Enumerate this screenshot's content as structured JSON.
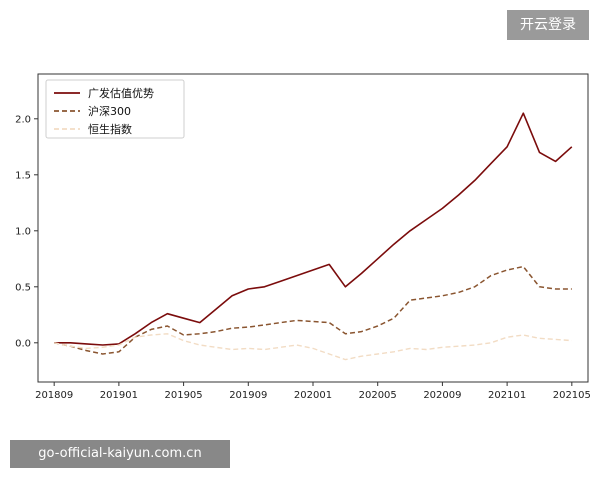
{
  "header": {
    "login_label": "开云登录"
  },
  "footer": {
    "watermark_text": "go-official-kaiyun.com.cn"
  },
  "colors": {
    "button_bg": "#9a9a9a",
    "watermark_bg": "#888888",
    "series_fund": "#7b0c0c",
    "series_csi300": "#8a5530",
    "series_hsi": "#f2dcc4"
  },
  "chart_data": {
    "type": "line",
    "title": "",
    "xlabel": "",
    "ylabel": "",
    "xlim": [
      "2018-08",
      "2021-06"
    ],
    "ylim": [
      -0.35,
      2.4
    ],
    "grid": false,
    "legend_position": "top-left",
    "x_ticks": [
      "201809",
      "201901",
      "201905",
      "201909",
      "202001",
      "202005",
      "202009",
      "202101",
      "202105"
    ],
    "y_ticks": [
      "0.0",
      "0.5",
      "1.0",
      "1.5",
      "2.0"
    ],
    "x": [
      "2018-09",
      "2018-10",
      "2018-11",
      "2018-12",
      "2019-01",
      "2019-02",
      "2019-03",
      "2019-04",
      "2019-05",
      "2019-06",
      "2019-07",
      "2019-08",
      "2019-09",
      "2019-10",
      "2019-11",
      "2019-12",
      "2020-01",
      "2020-02",
      "2020-03",
      "2020-04",
      "2020-05",
      "2020-06",
      "2020-07",
      "2020-08",
      "2020-09",
      "2020-10",
      "2020-11",
      "2020-12",
      "2021-01",
      "2021-02",
      "2021-03",
      "2021-04",
      "2021-05"
    ],
    "series": [
      {
        "name": "广发估值优势",
        "style": "solid",
        "values": [
          0.0,
          0.0,
          -0.01,
          -0.02,
          -0.01,
          0.08,
          0.18,
          0.26,
          0.22,
          0.18,
          0.3,
          0.42,
          0.48,
          0.5,
          0.55,
          0.6,
          0.65,
          0.7,
          0.5,
          0.62,
          0.75,
          0.88,
          1.0,
          1.1,
          1.2,
          1.32,
          1.45,
          1.6,
          1.75,
          2.05,
          1.7,
          1.62,
          1.75
        ]
      },
      {
        "name": "沪深300",
        "style": "dashed",
        "values": [
          0.0,
          -0.03,
          -0.07,
          -0.1,
          -0.08,
          0.05,
          0.12,
          0.15,
          0.07,
          0.08,
          0.1,
          0.13,
          0.14,
          0.16,
          0.18,
          0.2,
          0.19,
          0.18,
          0.08,
          0.1,
          0.15,
          0.22,
          0.38,
          0.4,
          0.42,
          0.45,
          0.5,
          0.6,
          0.65,
          0.68,
          0.5,
          0.48,
          0.48
        ]
      },
      {
        "name": "恒生指数",
        "style": "dashed",
        "values": [
          0.0,
          -0.03,
          -0.05,
          -0.04,
          -0.02,
          0.05,
          0.07,
          0.08,
          0.02,
          -0.02,
          -0.04,
          -0.06,
          -0.05,
          -0.06,
          -0.04,
          -0.02,
          -0.05,
          -0.1,
          -0.15,
          -0.12,
          -0.1,
          -0.08,
          -0.05,
          -0.06,
          -0.04,
          -0.03,
          -0.02,
          0.0,
          0.05,
          0.07,
          0.04,
          0.03,
          0.02
        ]
      }
    ]
  }
}
